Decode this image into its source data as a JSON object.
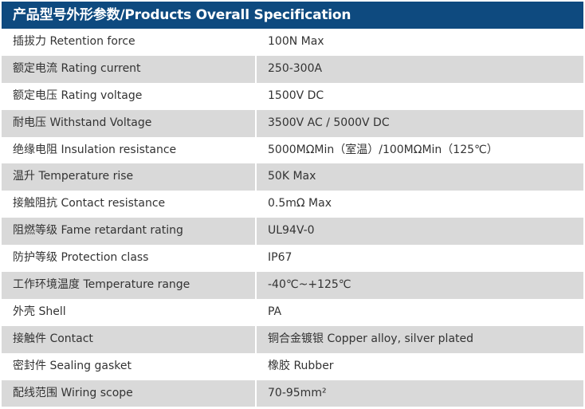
{
  "title": "产品型号外形参数/Products Overall Specification",
  "colors": {
    "header": "#0e4a7f",
    "stripe": "#d9d9d9"
  },
  "rows": [
    {
      "label": "插拔力 Retention force",
      "value": "100N Max"
    },
    {
      "label": "额定电流 Rating current",
      "value": "250-300A"
    },
    {
      "label": "额定电压 Rating voltage",
      "value": "1500V DC"
    },
    {
      "label": "耐电压  Withstand Voltage",
      "value": "3500V AC / 5000V DC"
    },
    {
      "label": "绝缘电阻 Insulation resistance",
      "value": "5000MΩMin（室温）/100MΩMin（125℃）"
    },
    {
      "label": "温升 Temperature rise",
      "value": "50K Max"
    },
    {
      "label": "接触阻抗 Contact resistance",
      "value": "0.5mΩ Max"
    },
    {
      "label": "阻燃等级 Fame retardant rating",
      "value": "UL94V-0"
    },
    {
      "label": "防护等级 Protection class",
      "value": "IP67"
    },
    {
      "label": "工作环境温度 Temperature range",
      "value": "-40℃~+125℃"
    },
    {
      "label": "外壳 Shell",
      "value": "PA"
    },
    {
      "label": "接触件 Contact",
      "value": "铜合金镀银 Copper alloy, silver plated"
    },
    {
      "label": "密封件 Sealing gasket",
      "value": "橡胶 Rubber"
    },
    {
      "label": "配线范围 Wiring scope",
      "value": "70-95mm²"
    }
  ]
}
